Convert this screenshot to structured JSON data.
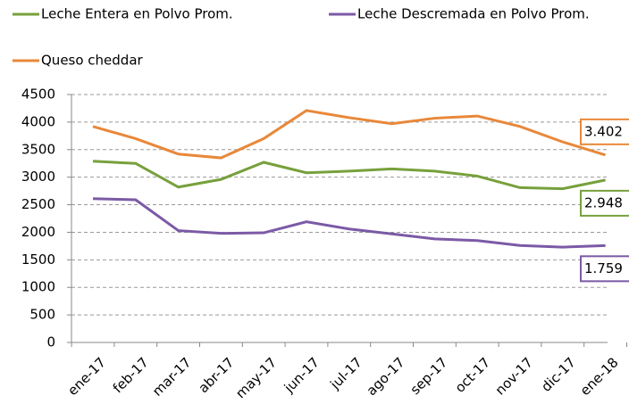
{
  "chart_data": {
    "type": "line",
    "categories": [
      "ene-17",
      "feb-17",
      "mar-17",
      "abr-17",
      "may-17",
      "jun-17",
      "jul-17",
      "ago-17",
      "sep-17",
      "oct-17",
      "nov-17",
      "dic-17",
      "ene-18"
    ],
    "series": [
      {
        "name": "Leche Entera en Polvo Prom.",
        "color": "#77a03c",
        "values": [
          3290,
          3250,
          2820,
          2960,
          3270,
          3080,
          3110,
          3150,
          3110,
          3020,
          2810,
          2790,
          2948
        ],
        "value_labels": [
          null,
          null,
          null,
          null,
          null,
          null,
          null,
          null,
          null,
          null,
          null,
          null,
          "2.948"
        ]
      },
      {
        "name": "Leche Descremada en Polvo Prom.",
        "color": "#7b5aa6",
        "values": [
          2610,
          2590,
          2030,
          1980,
          1990,
          2190,
          2060,
          1970,
          1880,
          1850,
          1760,
          1730,
          1759
        ],
        "value_labels": [
          null,
          null,
          null,
          null,
          null,
          null,
          null,
          null,
          null,
          null,
          null,
          null,
          "1.759"
        ]
      },
      {
        "name": "Queso cheddar",
        "color": "#e8883a",
        "values": [
          3920,
          3700,
          3420,
          3350,
          3700,
          4210,
          4080,
          3970,
          4070,
          4110,
          3920,
          3640,
          3402
        ],
        "value_labels": [
          null,
          null,
          null,
          null,
          null,
          null,
          null,
          null,
          null,
          null,
          null,
          null,
          "3.402"
        ]
      }
    ],
    "ylim": [
      0,
      4500
    ],
    "yticks": [
      0,
      500,
      1000,
      1500,
      2000,
      2500,
      3000,
      3500,
      4000,
      4500
    ],
    "grid": true,
    "legend": "top"
  }
}
